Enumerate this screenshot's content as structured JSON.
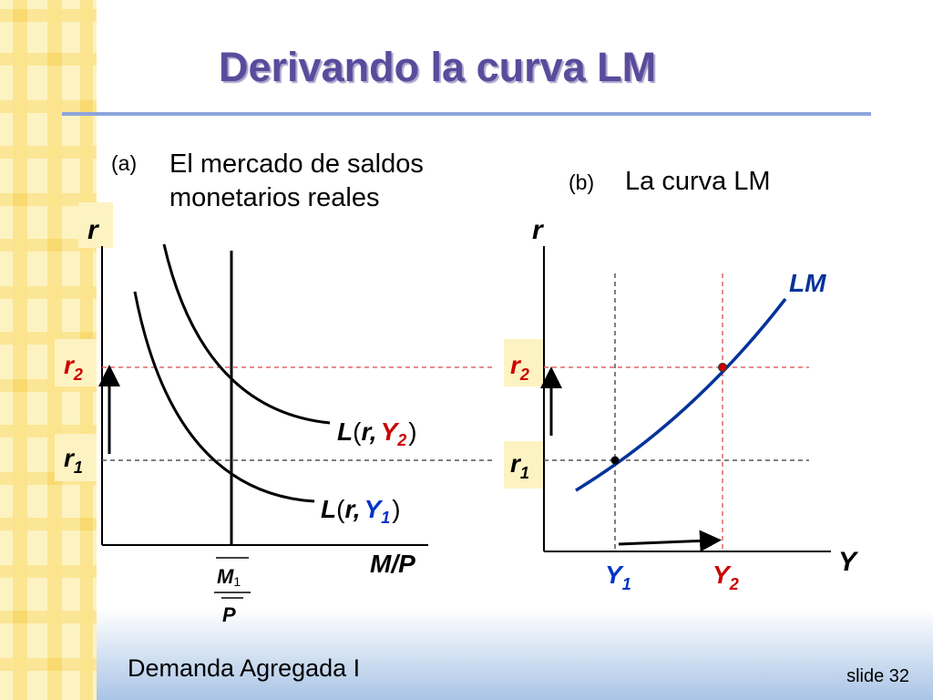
{
  "title": "Derivando la curva LM",
  "panel_a": {
    "marker": "(a)",
    "heading_line1": "El mercado de saldos",
    "heading_line2": "monetarios reales",
    "y_axis": "r",
    "x_axis": "M/P",
    "r2": "r",
    "r2_sub": "2",
    "r1": "r",
    "r1_sub": "1",
    "curve_high": {
      "L": "L",
      "open": "(",
      "r": "r",
      "comma": ",",
      "Y": "Y",
      "sub": "2",
      "close": ")"
    },
    "curve_low": {
      "L": "L",
      "open": "(",
      "r": "r",
      "comma": ",",
      "Y": "Y",
      "sub": "1",
      "close": ")"
    },
    "supply_num": "M",
    "supply_num_sub": "1",
    "supply_den": "P"
  },
  "panel_b": {
    "marker": "(b)",
    "heading": "La curva LM",
    "y_axis": "r",
    "x_axis": "Y",
    "curve_label": "LM",
    "r2": "r",
    "r2_sub": "2",
    "r1": "r",
    "r1_sub": "1",
    "y1": "Y",
    "y1_sub": "1",
    "y2": "Y",
    "y2_sub": "2"
  },
  "footer": "Demanda Agregada I",
  "slide_number": "slide 32",
  "colors": {
    "title": "#5a4b9c",
    "red": "#cc0000",
    "blue": "#0033cc",
    "lm_curve": "#003399",
    "rule": "#8da4dc"
  }
}
